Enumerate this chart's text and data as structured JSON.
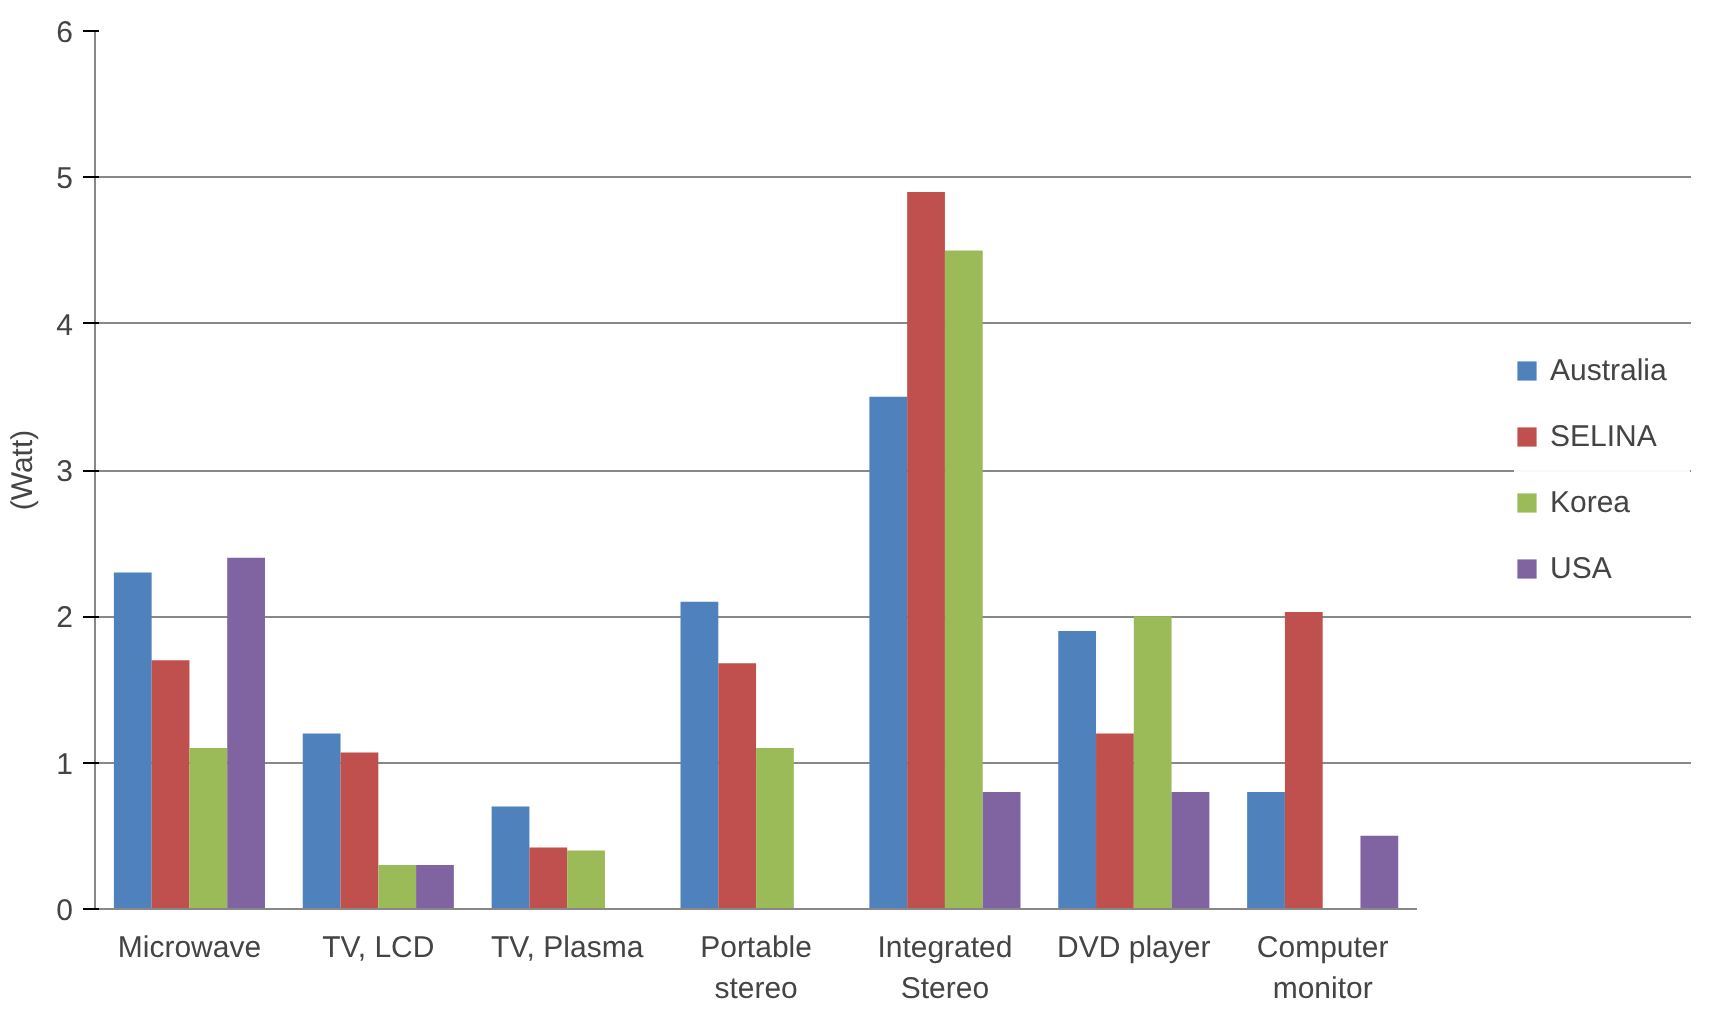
{
  "chart_data": {
    "type": "bar",
    "ylabel": "(Watt)",
    "categories": [
      "Microwave",
      "TV, LCD",
      "TV, Plasma",
      "Portable stereo",
      "Integrated Stereo",
      "DVD player",
      "Computer monitor"
    ],
    "series": [
      {
        "name": "Australia",
        "color": "#4f81bd",
        "values": [
          2.3,
          1.2,
          0.7,
          2.1,
          3.5,
          1.9,
          0.8
        ]
      },
      {
        "name": "SELINA",
        "color": "#c0504d",
        "values": [
          1.7,
          1.07,
          0.42,
          1.68,
          4.9,
          1.2,
          2.03
        ]
      },
      {
        "name": "Korea",
        "color": "#9bbb59",
        "values": [
          1.1,
          0.3,
          0.4,
          1.1,
          4.5,
          2.0,
          null
        ]
      },
      {
        "name": "USA",
        "color": "#8064a2",
        "values": [
          2.4,
          0.3,
          null,
          null,
          0.8,
          0.8,
          0.5
        ]
      }
    ],
    "ylim": [
      0,
      6
    ],
    "yticks": [
      0,
      1,
      2,
      3,
      4,
      5,
      6
    ],
    "grid": "y",
    "legend": "right"
  }
}
